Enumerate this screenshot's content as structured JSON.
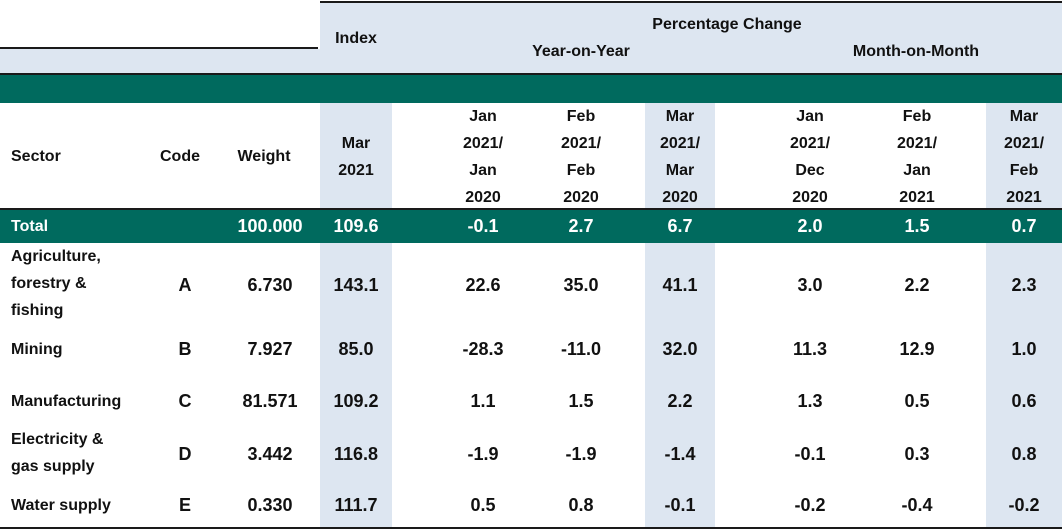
{
  "header": {
    "index_label": "Index",
    "percentage_change_label": "Percentage Change",
    "yoy_label": "Year-on-Year",
    "mom_label": "Month-on-Month"
  },
  "columns": {
    "sector": "Sector",
    "code": "Code",
    "weight": "Weight",
    "index_period": [
      "Mar",
      "2021"
    ],
    "yoy": [
      [
        "Jan",
        "2021/",
        "Jan",
        "2020"
      ],
      [
        "Feb",
        "2021/",
        "Feb",
        "2020"
      ],
      [
        "Mar",
        "2021/",
        "Mar",
        "2020"
      ]
    ],
    "mom": [
      [
        "Jan",
        "2021/",
        "Dec",
        "2020"
      ],
      [
        "Feb",
        "2021/",
        "Jan",
        "2021"
      ],
      [
        "Mar",
        "2021/",
        "Feb",
        "2021"
      ]
    ]
  },
  "total": {
    "sector": "Total",
    "code": "",
    "weight": "100.000",
    "index": "109.6",
    "yoy": [
      "-0.1",
      "2.7",
      "6.7"
    ],
    "mom": [
      "2.0",
      "1.5",
      "0.7"
    ]
  },
  "rows": [
    {
      "sector": [
        "Agriculture,",
        "forestry &",
        "fishing"
      ],
      "code": "A",
      "weight": "6.730",
      "index": "143.1",
      "yoy": [
        "22.6",
        "35.0",
        "41.1"
      ],
      "mom": [
        "3.0",
        "2.2",
        "2.3"
      ]
    },
    {
      "sector": [
        "Mining"
      ],
      "code": "B",
      "weight": "7.927",
      "index": "85.0",
      "yoy": [
        "-28.3",
        "-11.0",
        "32.0"
      ],
      "mom": [
        "11.3",
        "12.9",
        "1.0"
      ]
    },
    {
      "sector": [
        "Manufacturing"
      ],
      "code": "C",
      "weight": "81.571",
      "index": "109.2",
      "yoy": [
        "1.1",
        "1.5",
        "2.2"
      ],
      "mom": [
        "1.3",
        "0.5",
        "0.6"
      ]
    },
    {
      "sector": [
        "Electricity &",
        "gas supply"
      ],
      "code": "D",
      "weight": "3.442",
      "index": "116.8",
      "yoy": [
        "-1.9",
        "-1.9",
        "-1.4"
      ],
      "mom": [
        "-0.1",
        "0.3",
        "0.8"
      ]
    },
    {
      "sector": [
        "Water supply"
      ],
      "code": "E",
      "weight": "0.330",
      "index": "111.7",
      "yoy": [
        "0.5",
        "0.8",
        "-0.1"
      ],
      "mom": [
        "-0.2",
        "-0.4",
        "-0.2"
      ]
    }
  ],
  "colors": {
    "teal": "#006a5e",
    "highlight": "#dde6f1"
  }
}
